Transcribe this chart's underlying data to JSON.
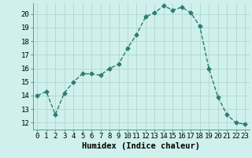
{
  "x": [
    0,
    1,
    2,
    3,
    4,
    5,
    6,
    7,
    8,
    9,
    10,
    11,
    12,
    13,
    14,
    15,
    16,
    17,
    18,
    19,
    20,
    21,
    22,
    23
  ],
  "y": [
    14.0,
    14.3,
    12.6,
    14.2,
    15.0,
    15.6,
    15.6,
    15.5,
    16.0,
    16.3,
    17.5,
    18.5,
    19.8,
    20.1,
    20.6,
    20.3,
    20.5,
    20.1,
    19.1,
    16.0,
    13.9,
    12.6,
    12.0,
    11.9
  ],
  "line_color": "#2e7d6e",
  "marker": "D",
  "marker_size": 2.5,
  "line_width": 1.0,
  "bg_color": "#cff0ec",
  "grid_color": "#aed8d2",
  "xlabel": "Humidex (Indice chaleur)",
  "xlim": [
    -0.5,
    23.5
  ],
  "ylim": [
    11.5,
    20.8
  ],
  "yticks": [
    12,
    13,
    14,
    15,
    16,
    17,
    18,
    19,
    20
  ],
  "xticks": [
    0,
    1,
    2,
    3,
    4,
    5,
    6,
    7,
    8,
    9,
    10,
    11,
    12,
    13,
    14,
    15,
    16,
    17,
    18,
    19,
    20,
    21,
    22,
    23
  ],
  "xtick_labels": [
    "0",
    "1",
    "2",
    "3",
    "4",
    "5",
    "6",
    "7",
    "8",
    "9",
    "10",
    "11",
    "12",
    "13",
    "14",
    "15",
    "16",
    "17",
    "18",
    "19",
    "20",
    "21",
    "22",
    "23"
  ],
  "tick_fontsize": 6.5,
  "xlabel_fontsize": 7.5
}
